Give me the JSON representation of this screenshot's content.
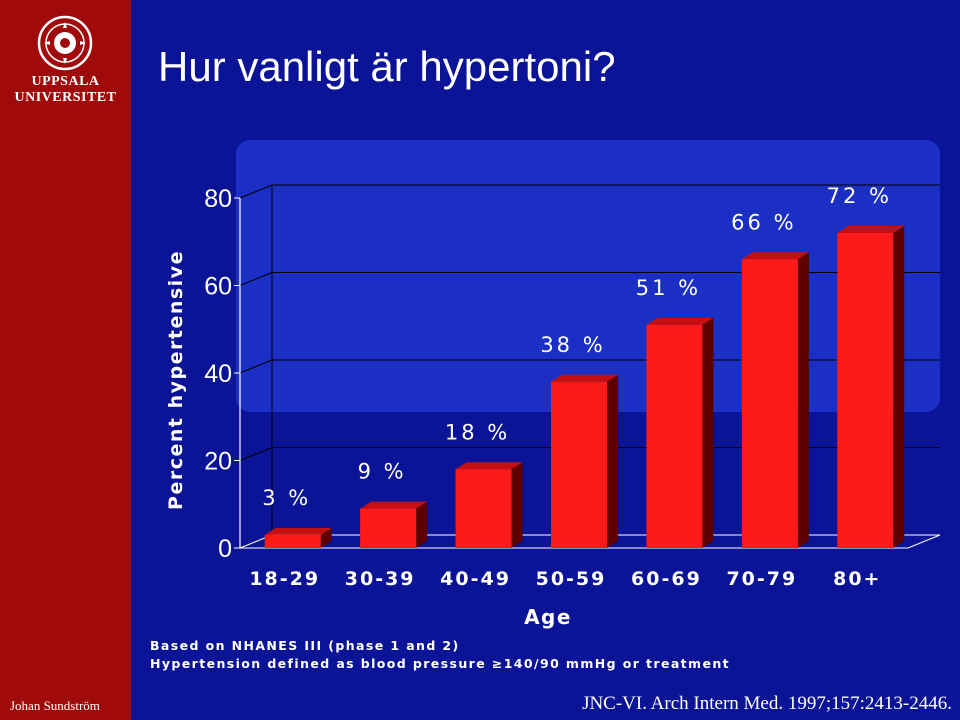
{
  "sidebar": {
    "logo_name_line1": "UPPSALA",
    "logo_name_line2": "UNIVERSITET",
    "author": "Johan Sundström"
  },
  "slide": {
    "title": "Hur vanligt är hypertoni?"
  },
  "chart_data": {
    "type": "bar",
    "categories": [
      "18-29",
      "30-39",
      "40-49",
      "50-59",
      "60-69",
      "70-79",
      "80+"
    ],
    "values": [
      3,
      9,
      18,
      38,
      51,
      66,
      72
    ],
    "data_labels": [
      "3 %",
      "9 %",
      "18 %",
      "38 %",
      "51 %",
      "66 %",
      "72 %"
    ],
    "xlabel": "Age",
    "ylabel": "Percent hypertensive",
    "ylim": [
      0,
      80
    ],
    "yticks": [
      "0",
      "20",
      "40",
      "60",
      "80"
    ],
    "ytick_values": [
      0,
      20,
      40,
      60,
      80
    ],
    "grid": true,
    "colors": {
      "bar_front": "#ff1a1a",
      "bar_side": "#5e0000",
      "bar_top": "#c41010",
      "panel": "#1b2fc4",
      "grid": "#000000"
    }
  },
  "footnote": {
    "line1": "Based on NHANES III (phase 1 and 2)",
    "line2": "Hypertension defined as blood pressure ≥140/90 mmHg or treatment"
  },
  "citation": "JNC-VI. Arch Intern Med. 1997;157:2413-2446."
}
